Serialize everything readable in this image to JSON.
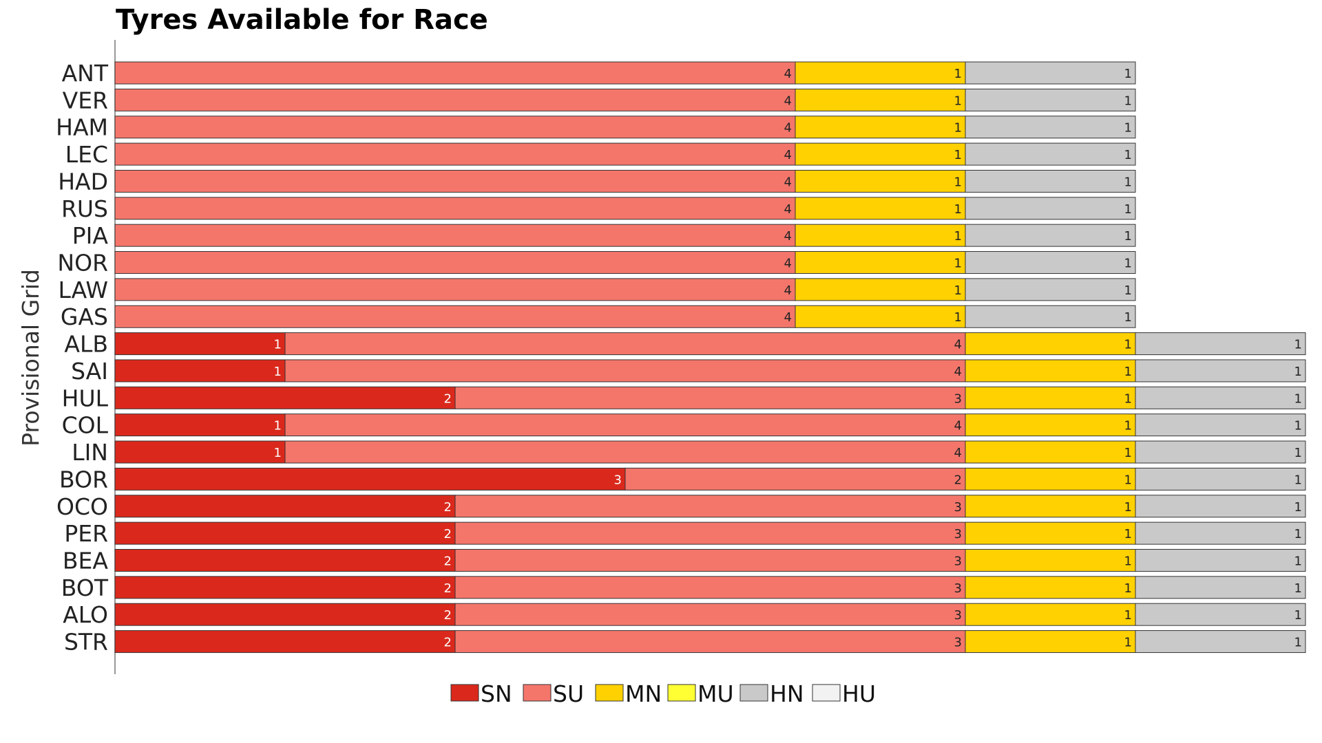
{
  "chart_data": {
    "type": "bar",
    "orientation": "horizontal",
    "stacked": true,
    "title": "Tyres Available for Race",
    "ylabel": "Provisional Grid",
    "xlabel": "",
    "categories": [
      "ANT",
      "VER",
      "HAM",
      "LEC",
      "HAD",
      "RUS",
      "PIA",
      "NOR",
      "LAW",
      "GAS",
      "ALB",
      "SAI",
      "HUL",
      "COL",
      "LIN",
      "BOR",
      "OCO",
      "PER",
      "BEA",
      "BOT",
      "ALO",
      "STR"
    ],
    "series": [
      {
        "name": "SN",
        "color": "#da291c",
        "values": [
          0,
          0,
          0,
          0,
          0,
          0,
          0,
          0,
          0,
          0,
          1,
          1,
          2,
          1,
          1,
          3,
          2,
          2,
          2,
          2,
          2,
          2
        ]
      },
      {
        "name": "SU",
        "color": "#f4766b",
        "values": [
          4,
          4,
          4,
          4,
          4,
          4,
          4,
          4,
          4,
          4,
          4,
          4,
          3,
          4,
          4,
          2,
          3,
          3,
          3,
          3,
          3,
          3
        ]
      },
      {
        "name": "MN",
        "color": "#ffd100",
        "values": [
          1,
          1,
          1,
          1,
          1,
          1,
          1,
          1,
          1,
          1,
          1,
          1,
          1,
          1,
          1,
          1,
          1,
          1,
          1,
          1,
          1,
          1
        ]
      },
      {
        "name": "MU",
        "color": "#ffff33",
        "values": [
          0,
          0,
          0,
          0,
          0,
          0,
          0,
          0,
          0,
          0,
          0,
          0,
          0,
          0,
          0,
          0,
          0,
          0,
          0,
          0,
          0,
          0
        ]
      },
      {
        "name": "HN",
        "color": "#c9c9c9",
        "values": [
          1,
          1,
          1,
          1,
          1,
          1,
          1,
          1,
          1,
          1,
          1,
          1,
          1,
          1,
          1,
          1,
          1,
          1,
          1,
          1,
          1,
          1
        ]
      },
      {
        "name": "HU",
        "color": "#f2f2f2",
        "values": [
          0,
          0,
          0,
          0,
          0,
          0,
          0,
          0,
          0,
          0,
          0,
          0,
          0,
          0,
          0,
          0,
          0,
          0,
          0,
          0,
          0,
          0
        ]
      }
    ],
    "xlim": [
      0,
      7
    ],
    "grid": false,
    "legend": "bottom-center",
    "label_colors": {
      "SN": "#ffffff",
      "SU": "#222222",
      "MN": "#222222",
      "MU": "#222222",
      "HN": "#222222",
      "HU": "#222222"
    }
  }
}
